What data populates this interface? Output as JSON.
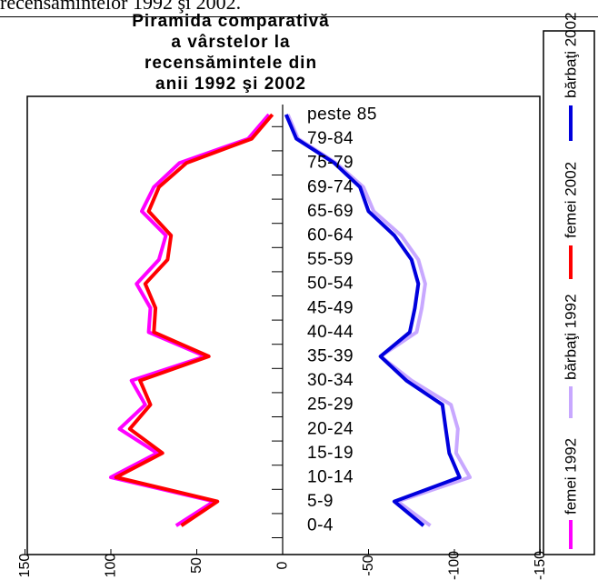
{
  "caption": "recensămintelor 1992 şi 2002.",
  "chart_data": {
    "type": "line",
    "title_lines": [
      "Piramida comparativă",
      "a vârstelor la",
      "recensămintele din",
      "anii 1992 şi 2002"
    ],
    "categories": [
      "0-4",
      "5-9",
      "10-14",
      "15-19",
      "20-24",
      "25-29",
      "30-34",
      "35-39",
      "40-44",
      "45-49",
      "50-54",
      "55-59",
      "60-64",
      "65-69",
      "69-74",
      "75-79",
      "79-84",
      "peste 85"
    ],
    "x_ticks": [
      150,
      100,
      50,
      0,
      -50,
      -100,
      -150
    ],
    "xlim": [
      150,
      -150
    ],
    "series": [
      {
        "name": "femei 1992",
        "color": "#ff00ff",
        "values": [
          62,
          40,
          100,
          73,
          95,
          80,
          88,
          45,
          78,
          77,
          85,
          72,
          68,
          82,
          75,
          60,
          20,
          8
        ]
      },
      {
        "name": "bărbaţi 1992",
        "color": "#c8a8ff",
        "values": [
          -86,
          -67,
          -109,
          -101,
          -102,
          -98,
          -75,
          -57,
          -78,
          -81,
          -83,
          -79,
          -69,
          -53,
          -47,
          -31,
          -9,
          -3
        ]
      },
      {
        "name": "femei 2002",
        "color": "#ff0000",
        "values": [
          59,
          38,
          97,
          70,
          89,
          77,
          83,
          43,
          75,
          74,
          80,
          67,
          65,
          78,
          72,
          56,
          18,
          6
        ]
      },
      {
        "name": "bărbaţi 2002",
        "color": "#0000dd",
        "values": [
          -82,
          -65,
          -103,
          -97,
          -95,
          -93,
          -72,
          -57,
          -74,
          -77,
          -79,
          -75,
          -65,
          -50,
          -45,
          -30,
          -8,
          -2
        ]
      }
    ]
  }
}
